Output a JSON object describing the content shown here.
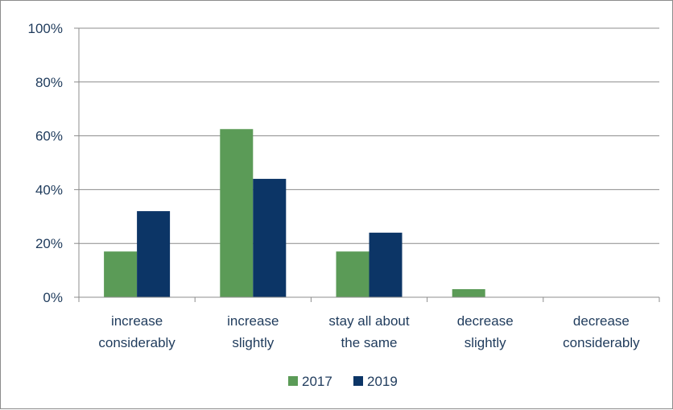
{
  "chart_data": {
    "type": "bar",
    "title": "",
    "xlabel": "",
    "ylabel": "",
    "categories": [
      [
        "increase",
        "considerably"
      ],
      [
        "increase",
        "slightly"
      ],
      [
        "stay all about",
        "the same"
      ],
      [
        "decrease",
        "slightly"
      ],
      [
        "decrease",
        "considerably"
      ]
    ],
    "series": [
      {
        "name": "2017",
        "color": "#5b9b57",
        "values": [
          17,
          62.5,
          17,
          3,
          0
        ]
      },
      {
        "name": "2019",
        "color": "#0c3566",
        "values": [
          32,
          44,
          24,
          0,
          0
        ]
      }
    ],
    "ylim": [
      0,
      100
    ],
    "yticks": [
      "0%",
      "20%",
      "40%",
      "60%",
      "80%",
      "100%"
    ],
    "ytick_values": [
      0,
      20,
      40,
      60,
      80,
      100
    ],
    "grid": true,
    "legend_position": "bottom"
  }
}
